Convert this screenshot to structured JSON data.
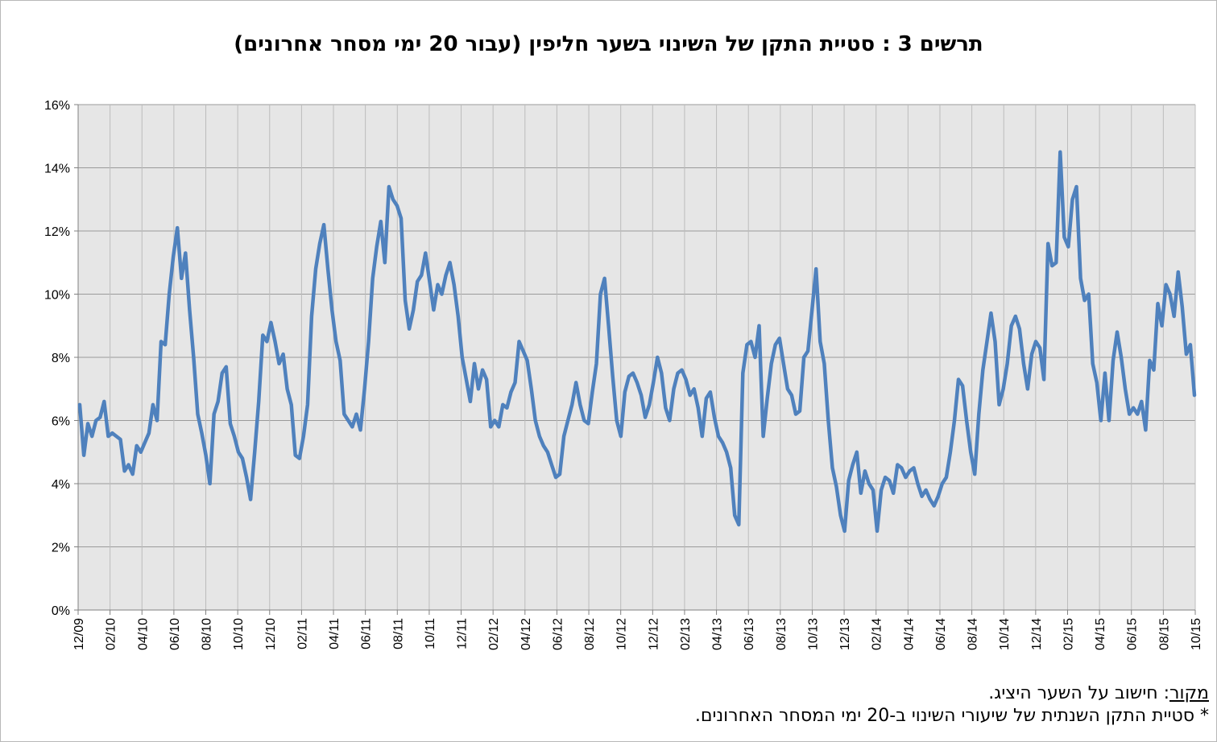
{
  "chart_data": {
    "type": "line",
    "title": "תרשים 3 : סטיית התקן של השינוי בשער חליפין (עבור 20 ימי מסחר אחרונים)",
    "xlabel": "",
    "ylabel": "",
    "ylim": [
      0,
      16
    ],
    "y_ticks": [
      "0%",
      "2%",
      "4%",
      "6%",
      "8%",
      "10%",
      "12%",
      "14%",
      "16%"
    ],
    "x_ticks": [
      "12/09",
      "02/10",
      "04/10",
      "06/10",
      "08/10",
      "10/10",
      "12/10",
      "02/11",
      "04/11",
      "06/11",
      "08/11",
      "10/11",
      "12/11",
      "02/12",
      "04/12",
      "06/12",
      "08/12",
      "10/12",
      "12/12",
      "02/13",
      "04/13",
      "06/13",
      "08/13",
      "10/13",
      "12/13",
      "02/14",
      "04/14",
      "06/14",
      "08/14",
      "10/14",
      "12/14",
      "02/15",
      "04/15",
      "06/15",
      "08/15",
      "10/15"
    ],
    "grid": true,
    "legend": "none",
    "line_color": "#4f81bd",
    "plot_background": "#e6e6e6",
    "series": [
      {
        "values": [
          6.5,
          4.9,
          5.9,
          5.5,
          6.0,
          6.1,
          6.6,
          5.5,
          5.6,
          5.5,
          5.4,
          4.4,
          4.6,
          4.3,
          5.2,
          5.0,
          5.3,
          5.6,
          6.5,
          6.0,
          8.5,
          8.4,
          10.0,
          11.2,
          12.1,
          10.5,
          11.3,
          9.5,
          8.0,
          6.2,
          5.6,
          4.9,
          4.0,
          6.2,
          6.6,
          7.5,
          7.7,
          5.9,
          5.5,
          5.0,
          4.8,
          4.2,
          3.5,
          5.0,
          6.6,
          8.7,
          8.5,
          9.1,
          8.5,
          7.8,
          8.1,
          7.0,
          6.5,
          4.9,
          4.8,
          5.5,
          6.5,
          9.3,
          10.8,
          11.6,
          12.2,
          10.8,
          9.5,
          8.5,
          7.9,
          6.2,
          6.0,
          5.8,
          6.2,
          5.7,
          7.0,
          8.5,
          10.5,
          11.5,
          12.3,
          11.0,
          13.4,
          13.0,
          12.8,
          12.4,
          9.8,
          8.9,
          9.5,
          10.4,
          10.6,
          11.3,
          10.4,
          9.5,
          10.3,
          10.0,
          10.6,
          11.0,
          10.3,
          9.3,
          8.0,
          7.3,
          6.6,
          7.8,
          7.0,
          7.6,
          7.3,
          5.8,
          6.0,
          5.8,
          6.5,
          6.4,
          6.9,
          7.2,
          8.5,
          8.2,
          7.9,
          7.0,
          6.0,
          5.5,
          5.2,
          5.0,
          4.6,
          4.2,
          4.3,
          5.5,
          6.0,
          6.5,
          7.2,
          6.5,
          6.0,
          5.9,
          6.9,
          7.8,
          10.0,
          10.5,
          9.0,
          7.4,
          6.0,
          5.5,
          6.9,
          7.4,
          7.5,
          7.2,
          6.8,
          6.1,
          6.5,
          7.2,
          8.0,
          7.5,
          6.4,
          6.0,
          7.0,
          7.5,
          7.6,
          7.3,
          6.8,
          7.0,
          6.4,
          5.5,
          6.7,
          6.9,
          6.1,
          5.5,
          5.3,
          5.0,
          4.5,
          3.0,
          2.7,
          7.5,
          8.4,
          8.5,
          8.0,
          9.0,
          5.5,
          6.7,
          7.8,
          8.4,
          8.6,
          7.8,
          7.0,
          6.8,
          6.2,
          6.3,
          8.0,
          8.2,
          9.5,
          10.8,
          8.5,
          7.8,
          6.0,
          4.5,
          3.9,
          3.0,
          2.5,
          4.1,
          4.6,
          5.0,
          3.7,
          4.4,
          4.0,
          3.8,
          2.5,
          3.8,
          4.2,
          4.1,
          3.7,
          4.6,
          4.5,
          4.2,
          4.4,
          4.5,
          4.0,
          3.6,
          3.8,
          3.5,
          3.3,
          3.6,
          4.0,
          4.2,
          5.0,
          6.0,
          7.3,
          7.1,
          6.0,
          5.0,
          4.3,
          6.2,
          7.6,
          8.5,
          9.4,
          8.5,
          6.5,
          7.0,
          7.8,
          9.0,
          9.3,
          8.9,
          7.8,
          7.0,
          8.1,
          8.5,
          8.3,
          7.3,
          11.6,
          10.9,
          11.0,
          14.5,
          11.8,
          11.5,
          13.0,
          13.4,
          10.5,
          9.8,
          10.0,
          7.8,
          7.2,
          6.0,
          7.5,
          6.0,
          7.9,
          8.8,
          8.0,
          7.0,
          6.2,
          6.4,
          6.2,
          6.6,
          5.7,
          7.9,
          7.6,
          9.7,
          9.0,
          10.3,
          10.0,
          9.3,
          10.7,
          9.6,
          8.1,
          8.4,
          6.8
        ]
      }
    ]
  },
  "notes": {
    "source_label": "מקור",
    "source_text": ": חישוב על השער היציג.",
    "footnote": "* סטיית התקן השנתית של שיעורי השינוי ב-20 ימי המסחר האחרונים."
  }
}
